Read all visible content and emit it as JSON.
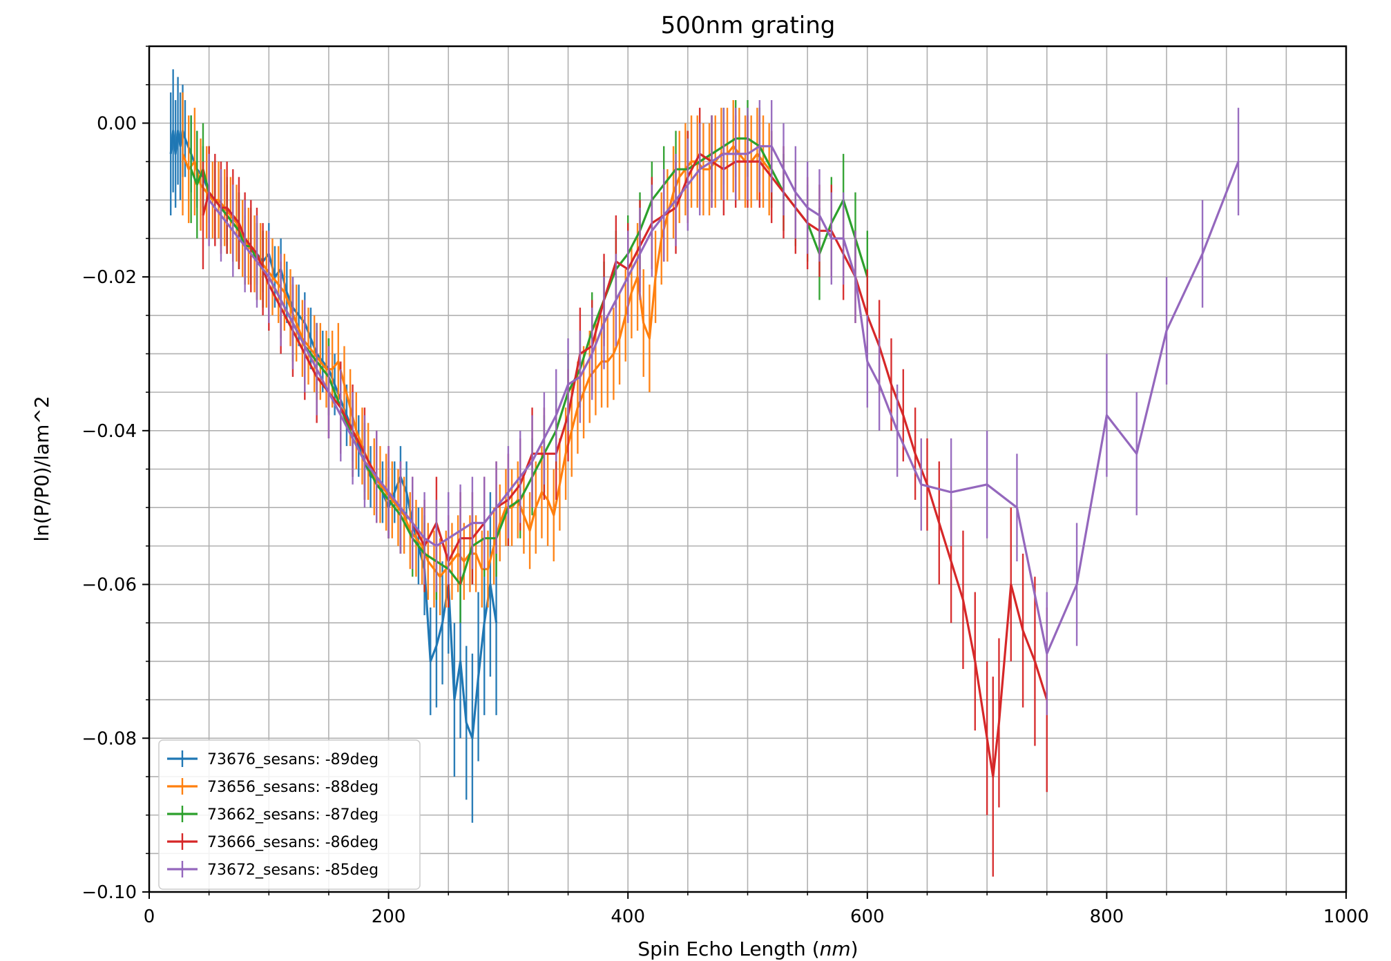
{
  "chart_data": {
    "type": "line",
    "title": "500nm grating",
    "xlabel": "Spin Echo Length (nm)",
    "xlabel_main": "Spin Echo Length (",
    "xlabel_unit": "nm",
    "xlabel_close": ")",
    "ylabel": "ln(P/P0)/lam^2",
    "xlim": [
      0,
      1000
    ],
    "ylim": [
      -0.1,
      0.01
    ],
    "xticks": [
      0,
      200,
      400,
      600,
      800,
      1000
    ],
    "xtick_labels": [
      "0",
      "200",
      "400",
      "600",
      "800",
      "1000"
    ],
    "yticks": [
      0.0,
      -0.02,
      -0.04,
      -0.06,
      -0.08,
      -0.1
    ],
    "ytick_labels": [
      "0.00",
      "−0.02",
      "−0.04",
      "−0.06",
      "−0.08",
      "−0.10"
    ],
    "grid": true,
    "legend_location": "lower left",
    "series": [
      {
        "name": "73676_sesans: -89deg",
        "color": "#1f77b4",
        "x": [
          18,
          20,
          22,
          24,
          26,
          28,
          30,
          35,
          40,
          45,
          50,
          55,
          60,
          65,
          70,
          75,
          80,
          85,
          90,
          95,
          100,
          105,
          110,
          115,
          120,
          125,
          130,
          135,
          140,
          145,
          150,
          155,
          160,
          165,
          170,
          175,
          180,
          185,
          190,
          195,
          200,
          205,
          210,
          215,
          220,
          225,
          230,
          235,
          240,
          245,
          250,
          255,
          260,
          265,
          270,
          275,
          280,
          285,
          290
        ],
        "y": [
          -0.004,
          -0.001,
          -0.004,
          -0.001,
          -0.003,
          -0.001,
          -0.002,
          -0.004,
          -0.006,
          -0.007,
          -0.009,
          -0.01,
          -0.011,
          -0.012,
          -0.013,
          -0.014,
          -0.016,
          -0.016,
          -0.017,
          -0.018,
          -0.017,
          -0.02,
          -0.019,
          -0.022,
          -0.024,
          -0.025,
          -0.026,
          -0.028,
          -0.03,
          -0.031,
          -0.032,
          -0.034,
          -0.036,
          -0.038,
          -0.04,
          -0.042,
          -0.044,
          -0.046,
          -0.046,
          -0.048,
          -0.05,
          -0.048,
          -0.046,
          -0.048,
          -0.052,
          -0.055,
          -0.058,
          -0.07,
          -0.068,
          -0.065,
          -0.06,
          -0.075,
          -0.07,
          -0.078,
          -0.08,
          -0.072,
          -0.065,
          -0.06,
          -0.065
        ],
        "err": [
          0.008,
          0.008,
          0.007,
          0.007,
          0.007,
          0.006,
          0.005,
          0.005,
          0.005,
          0.004,
          0.004,
          0.004,
          0.004,
          0.004,
          0.004,
          0.004,
          0.004,
          0.004,
          0.004,
          0.004,
          0.004,
          0.004,
          0.004,
          0.004,
          0.004,
          0.004,
          0.004,
          0.004,
          0.004,
          0.004,
          0.004,
          0.004,
          0.004,
          0.004,
          0.004,
          0.004,
          0.004,
          0.004,
          0.004,
          0.004,
          0.004,
          0.004,
          0.004,
          0.004,
          0.005,
          0.005,
          0.006,
          0.007,
          0.008,
          0.008,
          0.009,
          0.01,
          0.01,
          0.01,
          0.011,
          0.011,
          0.012,
          0.012,
          0.012
        ]
      },
      {
        "name": "73656_sesans: -88deg",
        "color": "#ff7f0e",
        "x": [
          28,
          33,
          38,
          43,
          48,
          53,
          58,
          63,
          68,
          73,
          78,
          83,
          88,
          93,
          98,
          103,
          108,
          113,
          118,
          123,
          128,
          133,
          138,
          143,
          148,
          153,
          158,
          163,
          168,
          173,
          178,
          183,
          188,
          193,
          198,
          203,
          208,
          213,
          218,
          223,
          228,
          233,
          238,
          243,
          248,
          253,
          258,
          263,
          268,
          273,
          278,
          283,
          288,
          293,
          298,
          303,
          308,
          313,
          318,
          323,
          328,
          333,
          338,
          343,
          348,
          353,
          358,
          363,
          368,
          373,
          378,
          383,
          388,
          393,
          398,
          403,
          408,
          413,
          418,
          423,
          428,
          433,
          438,
          443,
          448,
          453,
          458,
          463,
          468,
          473,
          478,
          483,
          488,
          493,
          498,
          503,
          508,
          513,
          518
        ],
        "y": [
          -0.004,
          -0.006,
          -0.005,
          -0.008,
          -0.009,
          -0.01,
          -0.01,
          -0.011,
          -0.012,
          -0.013,
          -0.015,
          -0.016,
          -0.017,
          -0.018,
          -0.019,
          -0.02,
          -0.021,
          -0.022,
          -0.024,
          -0.026,
          -0.028,
          -0.029,
          -0.03,
          -0.031,
          -0.032,
          -0.032,
          -0.031,
          -0.034,
          -0.037,
          -0.04,
          -0.042,
          -0.044,
          -0.046,
          -0.047,
          -0.048,
          -0.049,
          -0.05,
          -0.051,
          -0.053,
          -0.054,
          -0.055,
          -0.057,
          -0.058,
          -0.059,
          -0.058,
          -0.057,
          -0.056,
          -0.057,
          -0.056,
          -0.056,
          -0.058,
          -0.058,
          -0.055,
          -0.052,
          -0.05,
          -0.05,
          -0.049,
          -0.051,
          -0.053,
          -0.05,
          -0.048,
          -0.049,
          -0.051,
          -0.047,
          -0.043,
          -0.04,
          -0.037,
          -0.035,
          -0.033,
          -0.032,
          -0.031,
          -0.031,
          -0.03,
          -0.028,
          -0.025,
          -0.022,
          -0.02,
          -0.026,
          -0.028,
          -0.02,
          -0.015,
          -0.012,
          -0.009,
          -0.007,
          -0.006,
          -0.005,
          -0.005,
          -0.006,
          -0.006,
          -0.005,
          -0.004,
          -0.004,
          -0.003,
          -0.004,
          -0.005,
          -0.005,
          -0.004,
          -0.005,
          -0.006
        ],
        "err": [
          0.008,
          0.007,
          0.007,
          0.006,
          0.006,
          0.005,
          0.005,
          0.005,
          0.005,
          0.005,
          0.005,
          0.005,
          0.005,
          0.005,
          0.005,
          0.005,
          0.005,
          0.005,
          0.005,
          0.005,
          0.005,
          0.005,
          0.005,
          0.005,
          0.005,
          0.005,
          0.005,
          0.005,
          0.005,
          0.005,
          0.005,
          0.005,
          0.005,
          0.005,
          0.005,
          0.005,
          0.005,
          0.005,
          0.005,
          0.005,
          0.005,
          0.005,
          0.005,
          0.005,
          0.005,
          0.005,
          0.005,
          0.005,
          0.005,
          0.005,
          0.005,
          0.005,
          0.005,
          0.005,
          0.005,
          0.005,
          0.005,
          0.005,
          0.005,
          0.006,
          0.006,
          0.006,
          0.006,
          0.006,
          0.006,
          0.006,
          0.006,
          0.006,
          0.006,
          0.006,
          0.006,
          0.006,
          0.006,
          0.006,
          0.006,
          0.006,
          0.007,
          0.007,
          0.007,
          0.006,
          0.006,
          0.006,
          0.006,
          0.006,
          0.006,
          0.006,
          0.006,
          0.006,
          0.006,
          0.006,
          0.006,
          0.006,
          0.006,
          0.006,
          0.006,
          0.006,
          0.006,
          0.006,
          0.006
        ]
      },
      {
        "name": "73662_sesans: -87deg",
        "color": "#2ca02c",
        "x": [
          35,
          40,
          45,
          50,
          55,
          60,
          65,
          70,
          75,
          80,
          85,
          90,
          95,
          100,
          110,
          120,
          130,
          140,
          150,
          160,
          170,
          180,
          190,
          200,
          210,
          220,
          230,
          240,
          250,
          260,
          270,
          280,
          290,
          300,
          310,
          320,
          330,
          340,
          350,
          360,
          370,
          380,
          390,
          400,
          410,
          420,
          430,
          440,
          450,
          460,
          470,
          480,
          490,
          500,
          510,
          520,
          530,
          540,
          550,
          560,
          570,
          580,
          590,
          600
        ],
        "y": [
          -0.006,
          -0.008,
          -0.006,
          -0.009,
          -0.01,
          -0.011,
          -0.012,
          -0.013,
          -0.014,
          -0.016,
          -0.016,
          -0.018,
          -0.019,
          -0.02,
          -0.023,
          -0.026,
          -0.029,
          -0.031,
          -0.033,
          -0.037,
          -0.041,
          -0.044,
          -0.047,
          -0.049,
          -0.051,
          -0.054,
          -0.056,
          -0.057,
          -0.058,
          -0.06,
          -0.055,
          -0.054,
          -0.054,
          -0.05,
          -0.049,
          -0.046,
          -0.043,
          -0.04,
          -0.035,
          -0.032,
          -0.027,
          -0.023,
          -0.019,
          -0.017,
          -0.014,
          -0.01,
          -0.008,
          -0.006,
          -0.006,
          -0.005,
          -0.004,
          -0.003,
          -0.002,
          -0.002,
          -0.003,
          -0.006,
          -0.009,
          -0.011,
          -0.013,
          -0.017,
          -0.013,
          -0.01,
          -0.015,
          -0.02
        ],
        "err": [
          0.007,
          0.007,
          0.006,
          0.006,
          0.005,
          0.005,
          0.005,
          0.005,
          0.005,
          0.005,
          0.005,
          0.005,
          0.005,
          0.005,
          0.005,
          0.005,
          0.005,
          0.005,
          0.005,
          0.005,
          0.005,
          0.005,
          0.005,
          0.005,
          0.005,
          0.005,
          0.005,
          0.005,
          0.005,
          0.005,
          0.005,
          0.005,
          0.005,
          0.005,
          0.005,
          0.005,
          0.005,
          0.005,
          0.005,
          0.005,
          0.005,
          0.005,
          0.005,
          0.005,
          0.005,
          0.005,
          0.005,
          0.005,
          0.005,
          0.005,
          0.005,
          0.005,
          0.005,
          0.005,
          0.005,
          0.005,
          0.005,
          0.005,
          0.005,
          0.006,
          0.006,
          0.006,
          0.006,
          0.006
        ]
      },
      {
        "name": "73666_sesans: -86deg",
        "color": "#d62728",
        "x": [
          45,
          50,
          55,
          60,
          65,
          70,
          75,
          80,
          85,
          90,
          95,
          100,
          110,
          120,
          130,
          140,
          150,
          160,
          170,
          180,
          190,
          200,
          210,
          220,
          230,
          240,
          250,
          260,
          270,
          280,
          290,
          300,
          310,
          320,
          330,
          340,
          350,
          360,
          370,
          380,
          390,
          400,
          410,
          420,
          430,
          440,
          450,
          460,
          470,
          480,
          490,
          500,
          510,
          520,
          530,
          540,
          550,
          560,
          570,
          580,
          590,
          600,
          610,
          620,
          630,
          640,
          650,
          660,
          670,
          680,
          690,
          700,
          705,
          710,
          720,
          730,
          740,
          750
        ],
        "y": [
          -0.012,
          -0.009,
          -0.01,
          -0.011,
          -0.011,
          -0.012,
          -0.013,
          -0.015,
          -0.016,
          -0.017,
          -0.019,
          -0.021,
          -0.024,
          -0.027,
          -0.03,
          -0.033,
          -0.035,
          -0.037,
          -0.04,
          -0.043,
          -0.046,
          -0.048,
          -0.05,
          -0.052,
          -0.055,
          -0.052,
          -0.057,
          -0.054,
          -0.054,
          -0.052,
          -0.05,
          -0.049,
          -0.047,
          -0.043,
          -0.043,
          -0.043,
          -0.038,
          -0.03,
          -0.029,
          -0.023,
          -0.018,
          -0.019,
          -0.016,
          -0.013,
          -0.012,
          -0.011,
          -0.007,
          -0.004,
          -0.005,
          -0.006,
          -0.005,
          -0.005,
          -0.005,
          -0.007,
          -0.009,
          -0.011,
          -0.013,
          -0.014,
          -0.014,
          -0.017,
          -0.02,
          -0.025,
          -0.029,
          -0.034,
          -0.038,
          -0.043,
          -0.047,
          -0.052,
          -0.057,
          -0.062,
          -0.07,
          -0.08,
          -0.085,
          -0.078,
          -0.06,
          -0.066,
          -0.07,
          -0.075
        ],
        "err": [
          0.007,
          0.006,
          0.006,
          0.006,
          0.006,
          0.006,
          0.006,
          0.006,
          0.006,
          0.006,
          0.006,
          0.006,
          0.006,
          0.006,
          0.006,
          0.006,
          0.006,
          0.006,
          0.006,
          0.006,
          0.006,
          0.006,
          0.006,
          0.006,
          0.006,
          0.006,
          0.006,
          0.006,
          0.006,
          0.006,
          0.006,
          0.006,
          0.006,
          0.006,
          0.006,
          0.006,
          0.006,
          0.006,
          0.006,
          0.006,
          0.006,
          0.006,
          0.006,
          0.006,
          0.006,
          0.006,
          0.006,
          0.006,
          0.006,
          0.006,
          0.006,
          0.006,
          0.006,
          0.006,
          0.006,
          0.006,
          0.006,
          0.006,
          0.006,
          0.006,
          0.006,
          0.006,
          0.006,
          0.006,
          0.006,
          0.006,
          0.006,
          0.008,
          0.008,
          0.009,
          0.009,
          0.01,
          0.013,
          0.011,
          0.01,
          0.01,
          0.011,
          0.012
        ]
      },
      {
        "name": "73672_sesans: -85deg",
        "color": "#9467bd",
        "x": [
          50,
          60,
          70,
          80,
          90,
          100,
          110,
          120,
          130,
          140,
          150,
          160,
          170,
          180,
          190,
          200,
          210,
          220,
          230,
          240,
          250,
          260,
          270,
          280,
          290,
          300,
          310,
          320,
          330,
          340,
          350,
          360,
          370,
          380,
          390,
          400,
          410,
          420,
          430,
          440,
          450,
          460,
          470,
          480,
          490,
          500,
          510,
          520,
          530,
          540,
          550,
          560,
          570,
          580,
          590,
          600,
          610,
          625,
          645,
          670,
          700,
          725,
          750,
          775,
          800,
          825,
          850,
          880,
          910
        ],
        "y": [
          -0.01,
          -0.012,
          -0.014,
          -0.016,
          -0.018,
          -0.02,
          -0.023,
          -0.026,
          -0.029,
          -0.032,
          -0.035,
          -0.038,
          -0.041,
          -0.044,
          -0.046,
          -0.048,
          -0.05,
          -0.052,
          -0.054,
          -0.055,
          -0.054,
          -0.053,
          -0.052,
          -0.052,
          -0.05,
          -0.048,
          -0.046,
          -0.044,
          -0.041,
          -0.038,
          -0.034,
          -0.033,
          -0.03,
          -0.026,
          -0.023,
          -0.02,
          -0.017,
          -0.014,
          -0.012,
          -0.01,
          -0.008,
          -0.006,
          -0.005,
          -0.004,
          -0.004,
          -0.004,
          -0.003,
          -0.003,
          -0.006,
          -0.009,
          -0.011,
          -0.012,
          -0.015,
          -0.015,
          -0.02,
          -0.031,
          -0.034,
          -0.04,
          -0.047,
          -0.048,
          -0.047,
          -0.05,
          -0.069,
          -0.06,
          -0.038,
          -0.043,
          -0.027,
          -0.017,
          -0.005
        ],
        "err": [
          0.006,
          0.006,
          0.006,
          0.006,
          0.006,
          0.006,
          0.006,
          0.006,
          0.006,
          0.006,
          0.006,
          0.006,
          0.006,
          0.006,
          0.006,
          0.006,
          0.006,
          0.006,
          0.006,
          0.006,
          0.006,
          0.006,
          0.006,
          0.006,
          0.006,
          0.006,
          0.006,
          0.006,
          0.006,
          0.006,
          0.006,
          0.006,
          0.006,
          0.006,
          0.006,
          0.006,
          0.006,
          0.006,
          0.006,
          0.006,
          0.006,
          0.006,
          0.006,
          0.006,
          0.006,
          0.006,
          0.006,
          0.006,
          0.006,
          0.006,
          0.006,
          0.006,
          0.006,
          0.006,
          0.006,
          0.006,
          0.006,
          0.006,
          0.006,
          0.007,
          0.007,
          0.007,
          0.008,
          0.008,
          0.008,
          0.008,
          0.007,
          0.007,
          0.007
        ]
      }
    ]
  }
}
